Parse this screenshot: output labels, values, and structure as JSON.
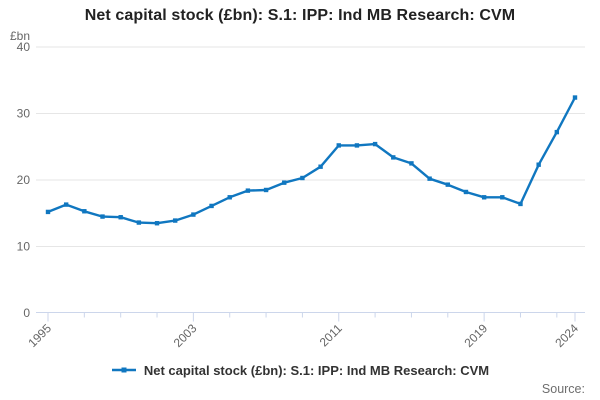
{
  "header": {
    "title": "Net capital stock (£bn): S.1: IPP: Ind MB Research: CVM"
  },
  "legend": {
    "label": "Net capital stock (£bn): S.1: IPP: Ind MB Research: CVM"
  },
  "footer": {
    "source_label": "Source:"
  },
  "chart_data": {
    "type": "line",
    "title": "Net capital stock (£bn): S.1: IPP: Ind MB Research: CVM",
    "unit_label": "£bn",
    "series_name": "Net capital stock (£bn): S.1: IPP: Ind MB Research: CVM",
    "x": [
      1995,
      1996,
      1997,
      1998,
      1999,
      2000,
      2001,
      2002,
      2003,
      2004,
      2005,
      2006,
      2007,
      2008,
      2009,
      2010,
      2011,
      2012,
      2013,
      2014,
      2015,
      2016,
      2017,
      2018,
      2019,
      2020,
      2021,
      2022,
      2023,
      2024
    ],
    "values": [
      15.2,
      16.3,
      15.3,
      14.5,
      14.4,
      13.6,
      13.5,
      13.9,
      14.8,
      16.1,
      17.4,
      18.4,
      18.5,
      19.6,
      20.3,
      22.0,
      25.2,
      25.2,
      25.4,
      23.4,
      22.5,
      20.2,
      19.3,
      18.2,
      17.4,
      17.4,
      16.4,
      22.3,
      27.2,
      32.4
    ],
    "ylim": [
      0,
      40
    ],
    "yticks": [
      0,
      10,
      20,
      30,
      40
    ],
    "xtick_labels": [
      1995,
      2003,
      2011,
      2019,
      2024
    ],
    "minor_xtick_step": 2,
    "grid": "horizontal",
    "legend_position": "bottom",
    "marker": "square",
    "colors": {
      "line": "#1077c0",
      "grid": "#e6e6e6",
      "axis": "#ccd6eb",
      "tick_text": "#666666",
      "title_text": "#222222",
      "legend_text": "#333333",
      "source_text": "#6e6e6e"
    }
  }
}
